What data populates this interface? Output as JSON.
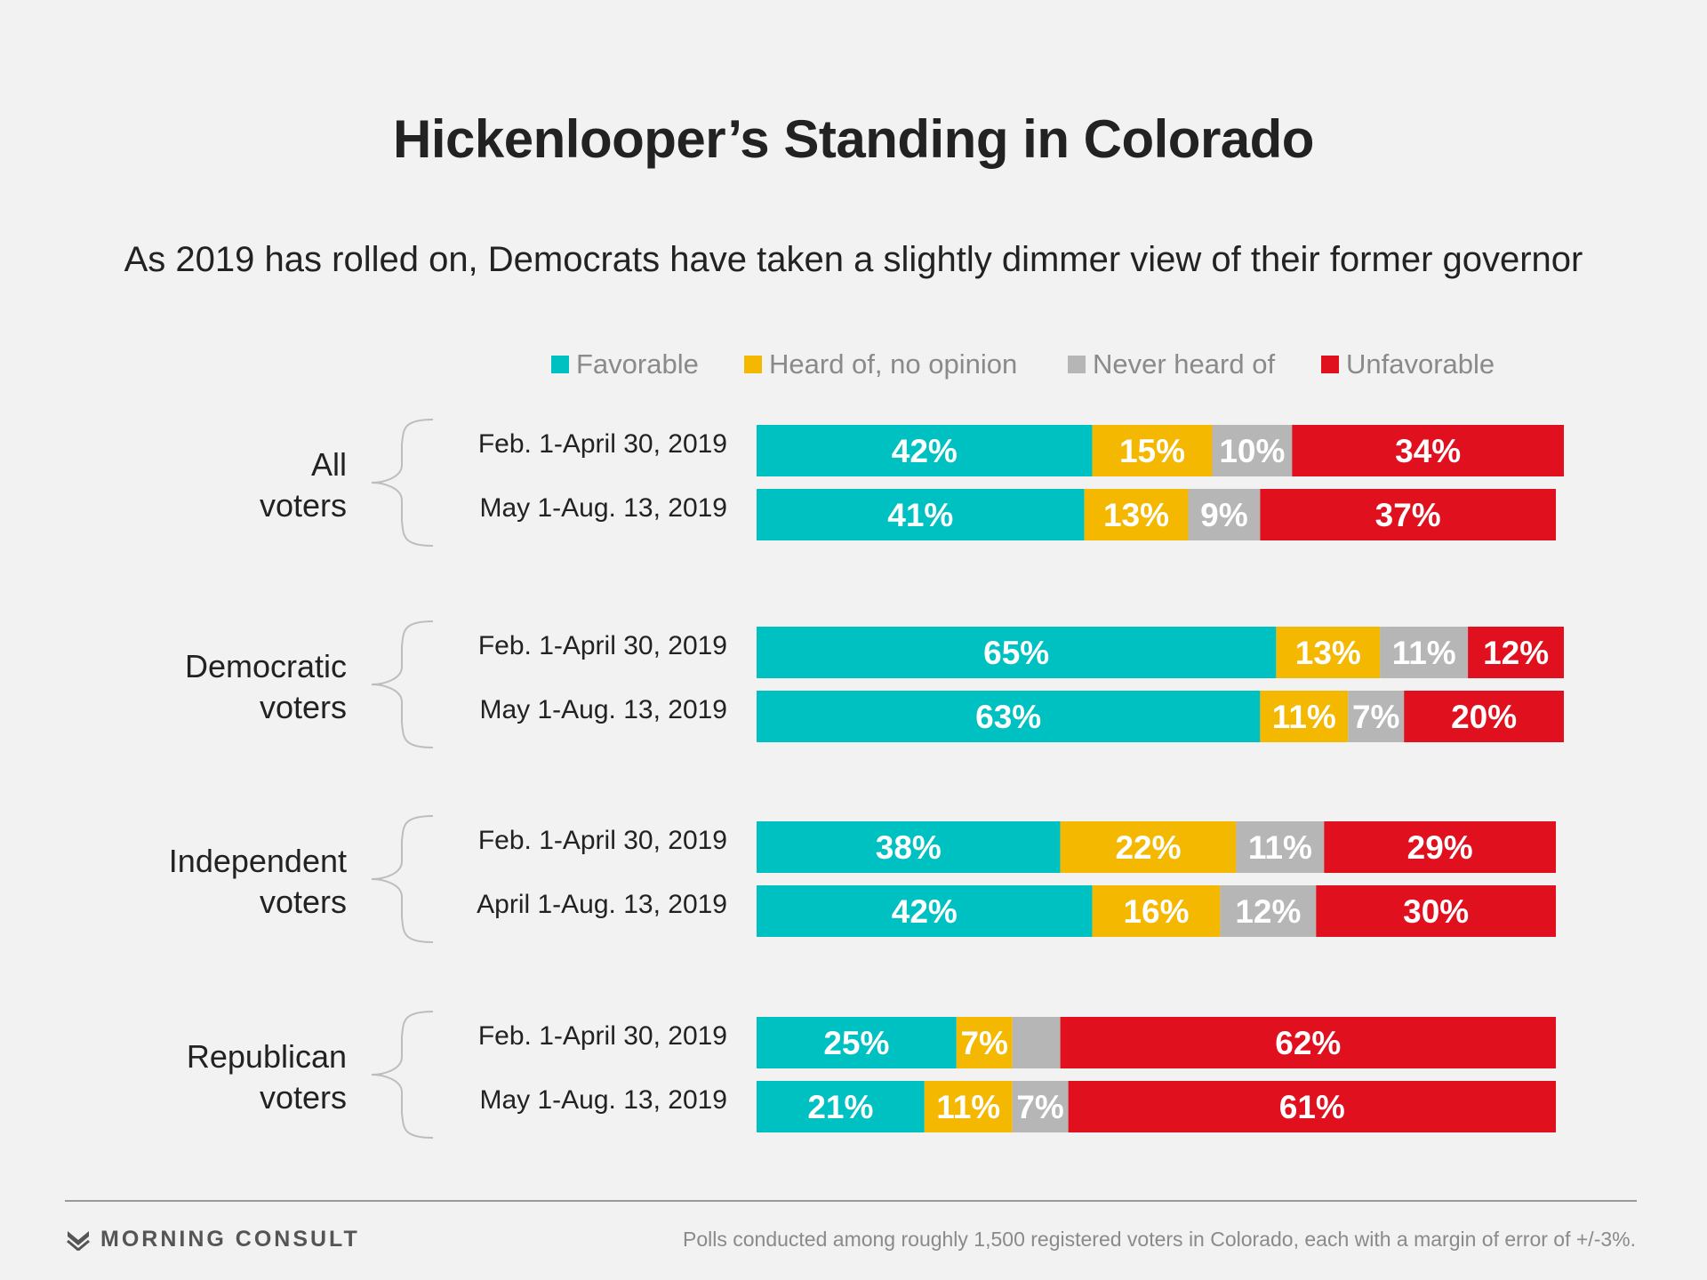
{
  "chart_data": {
    "type": "bar",
    "stacked": true,
    "orientation": "horizontal",
    "title": "Hickenlooper’s Standing in Colorado",
    "subtitle": "As 2019 has rolled on, Democrats have taken a slightly dimmer view of their former governor",
    "legend_position": "top",
    "xlim": [
      0,
      101
    ],
    "series": [
      {
        "name": "Favorable",
        "color": "#00c1c1"
      },
      {
        "name": "Heard of, no opinion",
        "color": "#f5b800"
      },
      {
        "name": "Never heard of",
        "color": "#b6b6b6"
      },
      {
        "name": "Unfavorable",
        "color": "#e0101e"
      }
    ],
    "groups": [
      {
        "name": "All voters",
        "label_lines": [
          "All",
          "voters"
        ],
        "rows": [
          {
            "period": "Feb. 1-April 30, 2019",
            "values": [
              42,
              15,
              10,
              34
            ],
            "labels": [
              "42%",
              "15%",
              "10%",
              "34%"
            ]
          },
          {
            "period": "May 1-Aug. 13, 2019",
            "values": [
              41,
              13,
              9,
              37
            ],
            "labels": [
              "41%",
              "13%",
              "9%",
              "37%"
            ]
          }
        ]
      },
      {
        "name": "Democratic voters",
        "label_lines": [
          "Democratic",
          "voters"
        ],
        "rows": [
          {
            "period": "Feb. 1-April 30, 2019",
            "values": [
              65,
              13,
              11,
              12
            ],
            "labels": [
              "65%",
              "13%",
              "11%",
              "12%"
            ]
          },
          {
            "period": "May 1-Aug. 13, 2019",
            "values": [
              63,
              11,
              7,
              20
            ],
            "labels": [
              "63%",
              "11%",
              "7%",
              "20%"
            ]
          }
        ]
      },
      {
        "name": "Independent voters",
        "label_lines": [
          "Independent",
          "voters"
        ],
        "rows": [
          {
            "period": "Feb. 1-April 30, 2019",
            "values": [
              38,
              22,
              11,
              29
            ],
            "labels": [
              "38%",
              "22%",
              "11%",
              "29%"
            ]
          },
          {
            "period": "April 1-Aug. 13, 2019",
            "values": [
              42,
              16,
              12,
              30
            ],
            "labels": [
              "42%",
              "16%",
              "12%",
              "30%"
            ]
          }
        ]
      },
      {
        "name": "Republican voters",
        "label_lines": [
          "Republican",
          "voters"
        ],
        "rows": [
          {
            "period": "Feb. 1-April 30, 2019",
            "values": [
              25,
              7,
              6,
              62
            ],
            "labels": [
              "25%",
              "7%",
              "",
              "62%"
            ]
          },
          {
            "period": "May 1-Aug. 13, 2019",
            "values": [
              21,
              11,
              7,
              61
            ],
            "labels": [
              "21%",
              "11%",
              "7%",
              "61%"
            ]
          }
        ]
      }
    ]
  },
  "branding": {
    "name": "MORNING CONSULT",
    "icon": "morning-consult-logo-icon"
  },
  "footnote": "Polls conducted among roughly 1,500 registered voters in Colorado, each with a margin of error of +/-3%."
}
